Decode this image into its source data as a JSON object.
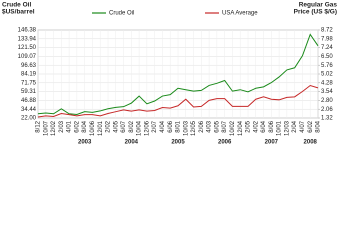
{
  "chart_data": {
    "type": "line",
    "y_title": [
      "Crude Oil",
      "$US/barrel"
    ],
    "y2_title": [
      "Regular Gas",
      "Price (US $/G)"
    ],
    "categories": [
      "8/12",
      "10/07",
      "12/02",
      "2/03",
      "4/01",
      "6/02",
      "8/04",
      "10/06",
      "12/01",
      "2/02",
      "4/05",
      "6/07",
      "8/02",
      "10/04",
      "12/06",
      "2/07",
      "4/04",
      "6/06",
      "8/01",
      "10/03",
      "12/05",
      "2/06",
      "4/03",
      "6/05",
      "8/07",
      "10/02",
      "12/04",
      "2/05",
      "4/02",
      "6/04",
      "8/06",
      "10/01",
      "12/03",
      "2/04",
      "4/07",
      "6/02",
      "8/04"
    ],
    "years": [
      null,
      null,
      null,
      null,
      null,
      null,
      "2003",
      null,
      null,
      null,
      null,
      null,
      "2004",
      null,
      null,
      null,
      null,
      null,
      "2005",
      null,
      null,
      null,
      null,
      null,
      "2006",
      null,
      null,
      null,
      null,
      null,
      "2007",
      null,
      null,
      null,
      null,
      "2008",
      null
    ],
    "series": [
      {
        "name": "Crude Oil",
        "color": "#1a8a1a",
        "values": [
          28,
          29,
          28,
          35,
          28,
          27,
          31,
          30,
          32,
          35,
          37,
          38,
          43,
          53,
          42,
          46,
          53,
          55,
          64,
          62,
          60,
          61,
          68,
          71,
          75,
          60,
          62,
          59,
          64,
          66,
          72,
          80,
          90,
          93,
          110,
          140,
          124
        ]
      },
      {
        "name": "USA Average",
        "color": "#c62828",
        "axis": "y2",
        "values": [
          1.4,
          1.5,
          1.45,
          1.7,
          1.6,
          1.5,
          1.6,
          1.6,
          1.5,
          1.7,
          1.85,
          2.0,
          1.9,
          2.0,
          1.9,
          1.95,
          2.2,
          2.15,
          2.35,
          2.9,
          2.25,
          2.3,
          2.8,
          2.95,
          2.95,
          2.3,
          2.3,
          2.3,
          2.9,
          3.1,
          2.9,
          2.85,
          3.05,
          3.1,
          3.55,
          4.05,
          3.85
        ]
      }
    ],
    "ylim": [
      22,
      146.38
    ],
    "yticks": [
      {
        "value": 22,
        "label": "22.00"
      },
      34.44,
      46.88,
      59.31,
      71.75,
      84.19,
      96.63,
      109.07,
      {
        "value": 121.5,
        "label": "121.50"
      },
      133.94,
      146.38
    ],
    "y2lim": [
      1.32,
      8.72
    ],
    "y2ticks": [
      1.32,
      2.06,
      {
        "value": 2.8,
        "label": "2.80"
      },
      3.54,
      4.28,
      5.02,
      5.76,
      {
        "value": 6.5,
        "label": "6.50"
      },
      7.24,
      7.98,
      8.72
    ],
    "grid": true
  }
}
